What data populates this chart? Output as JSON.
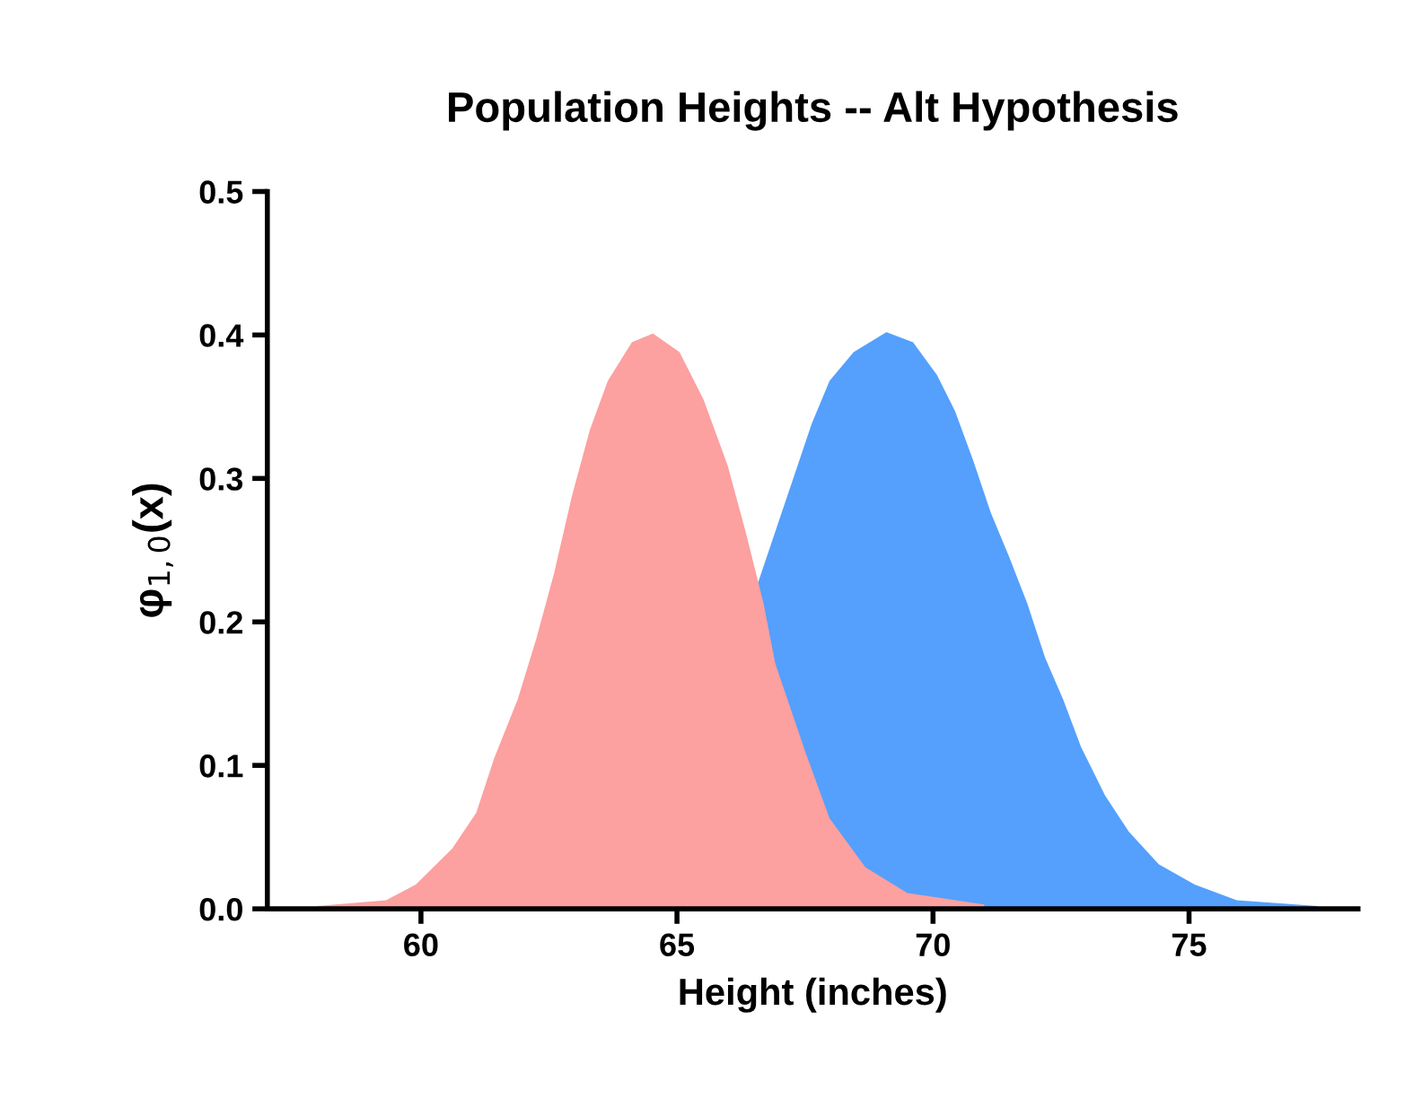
{
  "chart_data": {
    "type": "area",
    "title": "Population Heights -- Alt Hypothesis",
    "xlabel": "Height (inches)",
    "ylabel": "φ$_{1,0}$(x)",
    "xlim": [
      57,
      78.3
    ],
    "xticks": [
      60,
      65,
      70,
      75
    ],
    "ylim": [
      0,
      0.5
    ],
    "yticks": [
      {
        "value": 0,
        "label": "0.0"
      },
      0.1,
      0.2,
      0.3,
      0.4,
      0.5
    ],
    "grid": false,
    "legend": false,
    "series": [
      {
        "color": "#54a0fc",
        "x": [
          66.57,
          66.92,
          67.28,
          67.63,
          67.98,
          68.45,
          69.09,
          69.61,
          70.08,
          70.43,
          70.78,
          71.13,
          71.48,
          71.84,
          72.19,
          72.54,
          72.89,
          73.36,
          73.82,
          74.41,
          75.11,
          75.93,
          77.51
        ],
        "values": [
          0.226,
          0.263,
          0.301,
          0.338,
          0.368,
          0.388,
          0.402,
          0.395,
          0.372,
          0.347,
          0.313,
          0.276,
          0.246,
          0.213,
          0.175,
          0.146,
          0.113,
          0.079,
          0.054,
          0.031,
          0.017,
          0.006,
          0.002
        ]
      },
      {
        "color": "#fca0a0",
        "x": [
          57.97,
          59.32,
          59.9,
          60.61,
          61.08,
          61.43,
          61.89,
          62.25,
          62.6,
          62.95,
          63.3,
          63.65,
          64.12,
          64.53,
          65.05,
          65.52,
          65.99,
          66.34,
          66.69,
          66.92,
          67.51,
          67.98,
          68.68,
          69.5,
          71.0
        ],
        "values": [
          0.002,
          0.006,
          0.017,
          0.042,
          0.067,
          0.105,
          0.146,
          0.188,
          0.234,
          0.288,
          0.334,
          0.368,
          0.395,
          0.401,
          0.388,
          0.355,
          0.309,
          0.263,
          0.213,
          0.171,
          0.109,
          0.063,
          0.029,
          0.011,
          0.003
        ]
      }
    ]
  }
}
